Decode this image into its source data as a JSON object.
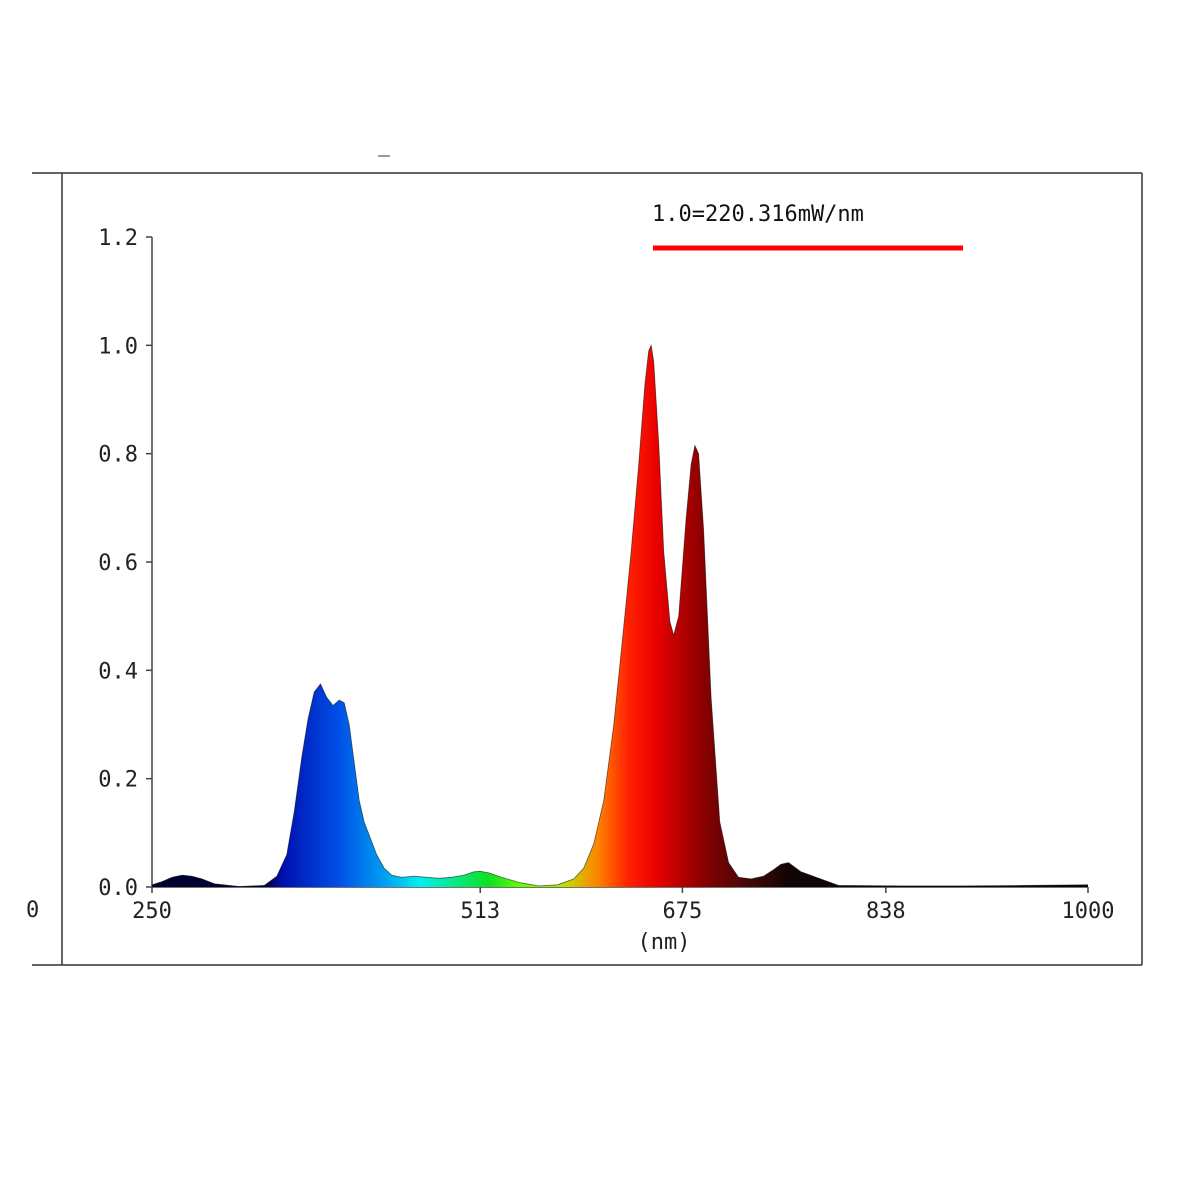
{
  "chart_data": {
    "type": "area",
    "title": "",
    "xlabel": "(nm)",
    "ylabel": "",
    "xlim": [
      250,
      1000
    ],
    "ylim": [
      0,
      1.2
    ],
    "x_ticks": [
      "250",
      "513",
      "675",
      "838",
      "1000"
    ],
    "y_ticks": [
      "0.0",
      "0.2",
      "0.4",
      "0.6",
      "0.8",
      "1.0",
      "1.2"
    ],
    "cropped_tick_label": "0",
    "grid": false,
    "legend": "none",
    "annotation": {
      "text": "1.0=220.316mW/nm",
      "line_color": "#ff0000"
    },
    "fill": "spectral gradient",
    "spectral_stops": [
      {
        "nm": 340,
        "color": "#000030"
      },
      {
        "nm": 355,
        "color": "#0010b0"
      },
      {
        "nm": 400,
        "color": "#0050e8"
      },
      {
        "nm": 440,
        "color": "#00a8f0"
      },
      {
        "nm": 465,
        "color": "#00f0f0"
      },
      {
        "nm": 520,
        "color": "#10e020"
      },
      {
        "nm": 545,
        "color": "#60ff00"
      },
      {
        "nm": 580,
        "color": "#c0e000"
      },
      {
        "nm": 608,
        "color": "#ff8000"
      },
      {
        "nm": 632,
        "color": "#ff2000"
      },
      {
        "nm": 655,
        "color": "#e80000"
      },
      {
        "nm": 690,
        "color": "#8c0000"
      },
      {
        "nm": 730,
        "color": "#400808"
      },
      {
        "nm": 760,
        "color": "#100404"
      }
    ],
    "series": [
      {
        "x": [
          250,
          258,
          266,
          274,
          282,
          290,
          300,
          320,
          340,
          350,
          358,
          364,
          370,
          375,
          380,
          385,
          390,
          395,
          400,
          404,
          408,
          412,
          416,
          420,
          425,
          430,
          436,
          442,
          450,
          460,
          470,
          480,
          490,
          500,
          508,
          513,
          520,
          530,
          545,
          560,
          575,
          588,
          596,
          604,
          612,
          620,
          628,
          634,
          640,
          645,
          648,
          650,
          652,
          656,
          660,
          665,
          668,
          672,
          678,
          682,
          685,
          688,
          692,
          698,
          705,
          712,
          720,
          730,
          740,
          748,
          754,
          760,
          770,
          800,
          850,
          900,
          950,
          1000
        ],
        "y": [
          0.004,
          0.01,
          0.018,
          0.022,
          0.02,
          0.015,
          0.006,
          0.001,
          0.003,
          0.02,
          0.06,
          0.14,
          0.24,
          0.31,
          0.36,
          0.375,
          0.35,
          0.335,
          0.345,
          0.34,
          0.3,
          0.23,
          0.16,
          0.12,
          0.09,
          0.06,
          0.035,
          0.022,
          0.018,
          0.02,
          0.018,
          0.016,
          0.018,
          0.022,
          0.028,
          0.029,
          0.026,
          0.018,
          0.008,
          0.002,
          0.004,
          0.015,
          0.035,
          0.08,
          0.16,
          0.3,
          0.48,
          0.62,
          0.78,
          0.93,
          0.99,
          1.0,
          0.97,
          0.82,
          0.62,
          0.49,
          0.465,
          0.5,
          0.68,
          0.78,
          0.815,
          0.8,
          0.66,
          0.35,
          0.12,
          0.045,
          0.018,
          0.015,
          0.02,
          0.032,
          0.042,
          0.045,
          0.028,
          0.003,
          0.002,
          0.002,
          0.003,
          0.004
        ]
      }
    ]
  }
}
